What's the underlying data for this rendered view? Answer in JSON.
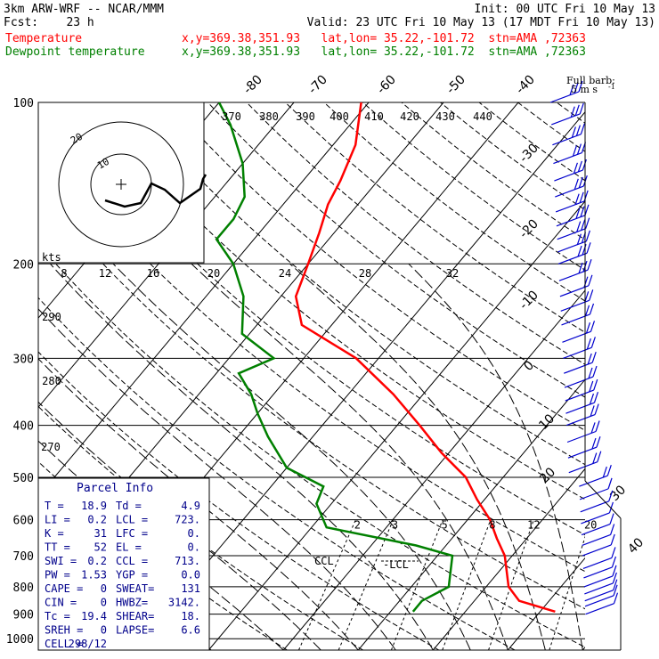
{
  "header": {
    "title": "3km ARW-WRF -- NCAR/MMM",
    "init": "Init: 00 UTC Fri 10 May 13",
    "fcst": "Fcst:    23 h",
    "valid": "Valid: 23 UTC Fri 10 May 13 (17 MDT Fri 10 May 13)",
    "temp_label": "Temperature",
    "dew_label": "Dewpoint temperature",
    "loc_text": "x,y=369.38,351.93   lat,lon= 35.22,-101.72  stn=AMA ,72363"
  },
  "colors": {
    "temperature": "#ff0000",
    "dewpoint": "#008000",
    "barbs": "#0000cd",
    "panel": "#00008b"
  },
  "barb_key": {
    "line1": "Full barb:",
    "line2": "5 m s",
    "exp": "-1"
  },
  "parcel": {
    "title": "Parcel Info",
    "rows": [
      [
        "T   =",
        "18.9",
        "Td =",
        "4.9"
      ],
      [
        "LI  =",
        "0.2",
        "LCL =",
        "723."
      ],
      [
        "K   =",
        "31",
        "LFC =",
        "0."
      ],
      [
        "TT  =",
        "52",
        "EL  =",
        "0."
      ],
      [
        "SWI =",
        "0.2",
        "CCL =",
        "713."
      ],
      [
        "PW  =",
        "1.53",
        "YGP =",
        "0.0"
      ],
      [
        "CAPE =",
        "0",
        "SWEAT=",
        "131"
      ],
      [
        "CIN  =",
        "0",
        "HWBZ=",
        "3142."
      ],
      [
        "Tc   =",
        "19.4",
        "SHEAR=",
        "18."
      ],
      [
        "SREH =",
        "0",
        "LAPSE=",
        "6.6"
      ],
      [
        "CELL =",
        "298/12",
        "",
        ""
      ]
    ]
  },
  "chart_data": {
    "type": "skew-t",
    "y_axis": "pressure (hPa), log scale",
    "pressure_labels": [
      "100",
      "200",
      "300",
      "400",
      "500",
      "600",
      "700",
      "800",
      "900",
      "1000"
    ],
    "isotherm_labels": [
      "-80",
      "-70",
      "-60",
      "-50",
      "-40",
      "-30",
      "-20",
      "-10",
      "0",
      "10",
      "20",
      "30",
      "40"
    ],
    "theta_labels": [
      "370",
      "380",
      "390",
      "400",
      "410",
      "420",
      "430",
      "440"
    ],
    "theta_left_labels": [
      "290",
      "280",
      "270"
    ],
    "mixing_ratio_labels": [
      "2",
      "3",
      "5",
      "8",
      "12",
      "20"
    ],
    "lcl_label": "-LCL",
    "ccl_label": "CCL",
    "temperature": {
      "name": "Temperature",
      "points": [
        [
          890,
          22
        ],
        [
          850,
          16
        ],
        [
          800,
          13
        ],
        [
          700,
          9
        ],
        [
          650,
          6
        ],
        [
          600,
          3
        ],
        [
          550,
          -1
        ],
        [
          500,
          -5
        ],
        [
          450,
          -11
        ],
        [
          400,
          -17
        ],
        [
          350,
          -24
        ],
        [
          300,
          -33
        ],
        [
          260,
          -44
        ],
        [
          230,
          -48
        ],
        [
          200,
          -50
        ],
        [
          175,
          -52
        ],
        [
          155,
          -54
        ],
        [
          140,
          -55
        ],
        [
          120,
          -57
        ],
        [
          100,
          -61
        ]
      ]
    },
    "dewpoint": {
      "name": "Dewpoint temperature",
      "points": [
        [
          890,
          3
        ],
        [
          850,
          3
        ],
        [
          800,
          5
        ],
        [
          700,
          2
        ],
        [
          670,
          -4
        ],
        [
          620,
          -18
        ],
        [
          560,
          -22
        ],
        [
          520,
          -23
        ],
        [
          480,
          -30
        ],
        [
          420,
          -36
        ],
        [
          380,
          -40
        ],
        [
          350,
          -43
        ],
        [
          320,
          -47
        ],
        [
          300,
          -44
        ],
        [
          270,
          -51
        ],
        [
          230,
          -55
        ],
        [
          200,
          -60
        ],
        [
          180,
          -65
        ],
        [
          165,
          -65
        ],
        [
          150,
          -66
        ],
        [
          130,
          -70
        ],
        [
          110,
          -76
        ],
        [
          100,
          -80
        ]
      ]
    },
    "hodograph": {
      "ring_labels": [
        "10",
        "20"
      ],
      "speed_axis": "kts"
    },
    "hodograph_scale": [
      "8",
      "12",
      "16",
      "20",
      "24",
      "28",
      "32"
    ],
    "wind_barb_pressures": [
      900,
      870,
      850,
      825,
      800,
      770,
      740,
      700,
      670,
      640,
      610,
      580,
      550,
      520,
      490,
      460,
      430,
      400,
      380,
      360,
      340,
      320,
      300,
      280,
      260,
      245,
      230,
      215,
      200,
      190,
      180,
      170,
      160,
      150,
      140,
      130,
      120,
      110,
      100
    ]
  }
}
